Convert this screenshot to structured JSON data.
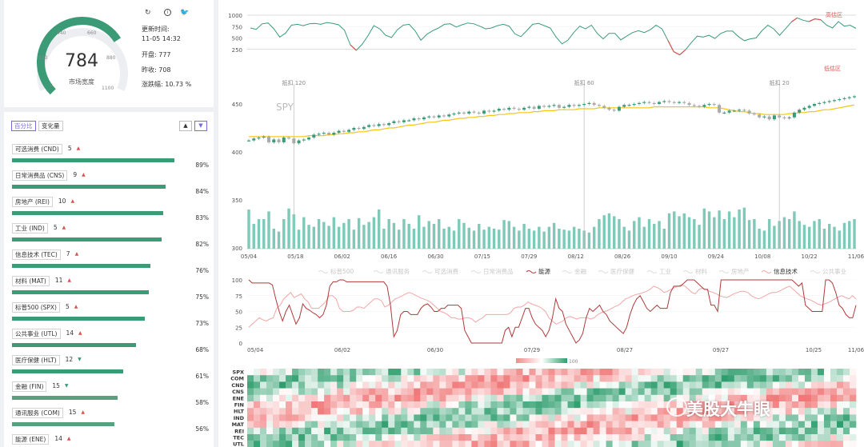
{
  "gauge": {
    "value": "784",
    "label": "市场宽度",
    "min": 0,
    "max": 1100,
    "ticks": [
      "0",
      "220",
      "440",
      "660",
      "880",
      "1100"
    ],
    "fraction": 0.713
  },
  "toolbar": {
    "refresh_icon": "refresh-icon",
    "info_icon": "info-icon",
    "share_icon": "twitter-icon"
  },
  "stats": {
    "update_label": "更新时间:",
    "update_time": "11-05 14:32",
    "open": "开盘: 777",
    "prev_close": "昨收: 708",
    "change": "涨跌幅: 10.73 %"
  },
  "sector_panel": {
    "tab_percent": "百分比",
    "tab_change": "变化量",
    "sort_up": "▲",
    "sort_down": "▼",
    "items": [
      {
        "name": "可选消费 (CND)",
        "count": "5",
        "trend": "up",
        "value": 89,
        "pct": "89%"
      },
      {
        "name": "日常消费品 (CNS)",
        "count": "9",
        "trend": "up",
        "value": 84,
        "pct": "84%"
      },
      {
        "name": "房地产 (REI)",
        "count": "10",
        "trend": "up",
        "value": 83,
        "pct": "83%"
      },
      {
        "name": "工业 (IND)",
        "count": "5",
        "trend": "up",
        "value": 82,
        "pct": "82%"
      },
      {
        "name": "信息技术 (TEC)",
        "count": "7",
        "trend": "up",
        "value": 76,
        "pct": "76%"
      },
      {
        "name": "材料 (MAT)",
        "count": "11",
        "trend": "up",
        "value": 75,
        "pct": "75%"
      },
      {
        "name": "标普500 (SPX)",
        "count": "5",
        "trend": "up",
        "value": 73,
        "pct": "73%"
      },
      {
        "name": "公共事业 (UTL)",
        "count": "14",
        "trend": "up",
        "value": 68,
        "pct": "68%"
      },
      {
        "name": "医疗保健 (HLT)",
        "count": "12",
        "trend": "down",
        "value": 61,
        "pct": "61%"
      },
      {
        "name": "金融 (FIN)",
        "count": "15",
        "trend": "down",
        "value": 58,
        "pct": "58%"
      },
      {
        "name": "通讯服务 (COM)",
        "count": "15",
        "trend": "up",
        "value": 56,
        "pct": "56%"
      },
      {
        "name": "能源 (ENE)",
        "count": "14",
        "trend": "up",
        "value": null,
        "pct": ""
      }
    ]
  },
  "colors": {
    "green": "#3b9b77",
    "light_green": "#7fc9b8",
    "red": "#d9534f",
    "yellow": "#f5c518",
    "accent": "#7b6bd8",
    "dark_red": "#b03a3a",
    "pink": "#f2a6a6"
  },
  "main_chart": {
    "breadth": {
      "y_ticks": [
        "1000",
        "750",
        "500",
        "250"
      ],
      "overbought_label": "高估区",
      "oversold_label": "低估区",
      "values": [
        720,
        690,
        810,
        830,
        700,
        520,
        610,
        780,
        800,
        770,
        810,
        820,
        800,
        840,
        820,
        790,
        670,
        350,
        230,
        360,
        550,
        770,
        700,
        560,
        510,
        680,
        780,
        800,
        660,
        450,
        580,
        660,
        720,
        800,
        810,
        740,
        790,
        830,
        810,
        760,
        700,
        720,
        770,
        800,
        760,
        590,
        530,
        660,
        800,
        820,
        770,
        720,
        520,
        370,
        450,
        620,
        760,
        700,
        780,
        600,
        480,
        600,
        600,
        460,
        540,
        620,
        660,
        620,
        680,
        780,
        700,
        450,
        200,
        130,
        240,
        400,
        540,
        520,
        560,
        490,
        600,
        650,
        650,
        530,
        440,
        480,
        500,
        660,
        780,
        700,
        560,
        700,
        850,
        940,
        890,
        860,
        920,
        900,
        780,
        720,
        860,
        760,
        780,
        710
      ]
    },
    "price": {
      "label": "SPY",
      "y_ticks": [
        "450",
        "400",
        "350",
        "300"
      ],
      "x_ticks": [
        "05/04",
        "05/18",
        "06/02",
        "06/16",
        "06/30",
        "07/15",
        "07/29",
        "08/12",
        "08/26",
        "09/10",
        "09/24",
        "10/08",
        "10/22",
        "11/06"
      ],
      "markers": [
        {
          "label": "抵扣 120",
          "index": 9
        },
        {
          "label": "抵扣 60",
          "index": 67
        },
        {
          "label": "抵扣 20",
          "index": 106
        }
      ],
      "closes": [
        412,
        414,
        415,
        416,
        410,
        413,
        410,
        415,
        414,
        409,
        412,
        413,
        415,
        418,
        419,
        420,
        418,
        420,
        422,
        421,
        423,
        425,
        424,
        426,
        428,
        427,
        429,
        428,
        430,
        432,
        431,
        433,
        433,
        435,
        434,
        436,
        437,
        436,
        438,
        437,
        439,
        440,
        441,
        440,
        442,
        441,
        440,
        443,
        442,
        443,
        445,
        444,
        446,
        445,
        444,
        446,
        447,
        445,
        448,
        447,
        448,
        449,
        446,
        447,
        449,
        448,
        449,
        450,
        451,
        449,
        448,
        446,
        444,
        443,
        447,
        449,
        449,
        450,
        451,
        452,
        451,
        450,
        452,
        453,
        452,
        451,
        452,
        451,
        449,
        448,
        447,
        449,
        450,
        449,
        441,
        441,
        443,
        443,
        444,
        443,
        440,
        439,
        436,
        437,
        434,
        438,
        436,
        435,
        436,
        441,
        444,
        446,
        448,
        450,
        451,
        452,
        453,
        454,
        455,
        456,
        457,
        458
      ],
      "ma": [
        416,
        416,
        416,
        416,
        416,
        416,
        416,
        416,
        416,
        416,
        416,
        416,
        417,
        417,
        417,
        417,
        418,
        418,
        419,
        419,
        420,
        420,
        421,
        421,
        422,
        423,
        423,
        424,
        425,
        425,
        426,
        427,
        428,
        428,
        429,
        430,
        431,
        431,
        432,
        433,
        433,
        434,
        435,
        435,
        436,
        436,
        437,
        437,
        438,
        438,
        439,
        439,
        440,
        440,
        441,
        441,
        441,
        442,
        442,
        443,
        443,
        443,
        444,
        444,
        444,
        444,
        445,
        445,
        445,
        445,
        446,
        446,
        446,
        446,
        446,
        446,
        446,
        446,
        446,
        446,
        446,
        447,
        447,
        447,
        447,
        447,
        447,
        447,
        447,
        447,
        447,
        447,
        446,
        446,
        446,
        445,
        444,
        443,
        442,
        442,
        441,
        440,
        440,
        439,
        439,
        439,
        439,
        439,
        440,
        440,
        441,
        441,
        442,
        442,
        443,
        444,
        444,
        445,
        446,
        447,
        448,
        449
      ],
      "volumes": [
        340,
        325,
        330,
        330,
        338,
        320,
        317,
        330,
        341,
        335,
        319,
        332,
        324,
        322,
        330,
        327,
        323,
        332,
        322,
        326,
        330,
        319,
        331,
        324,
        327,
        332,
        340,
        320,
        330,
        326,
        319,
        330,
        325,
        320,
        334,
        322,
        328,
        325,
        330,
        320,
        322,
        318,
        330,
        326,
        321,
        318,
        325,
        319,
        322,
        320,
        319,
        329,
        328,
        322,
        318,
        325,
        320,
        318,
        322,
        317,
        322,
        326,
        320,
        319,
        318,
        322,
        320,
        318,
        316,
        322,
        330,
        334,
        336,
        333,
        330,
        322,
        318,
        328,
        332,
        322,
        330,
        325,
        328,
        320,
        336,
        338,
        333,
        336,
        332,
        330,
        324,
        341,
        338,
        332,
        339,
        330,
        338,
        332,
        340,
        342,
        329,
        330,
        320,
        318,
        330,
        323,
        328,
        332,
        330,
        338,
        328,
        324,
        322,
        328,
        330,
        320,
        325,
        322,
        318,
        326,
        328,
        330
      ]
    },
    "legend": [
      "标普500",
      "通讯服务",
      "可选消费",
      "日常消费品",
      "能源",
      "金融",
      "医疗保健",
      "工业",
      "材料",
      "房地产",
      "信息技术",
      "公共事业"
    ],
    "legend_active": [
      "能源",
      "信息技术"
    ],
    "sector_lines": {
      "y_ticks": [
        "100",
        "75",
        "50",
        "25",
        "0"
      ],
      "x_ticks": [
        "05/04",
        "06/02",
        "06/30",
        "07/29",
        "08/27",
        "09/27",
        "10/25",
        "11/06"
      ],
      "energy": [
        100,
        95,
        95,
        95,
        95,
        95,
        95,
        92,
        70,
        50,
        35,
        50,
        60,
        45,
        30,
        40,
        62,
        55,
        52,
        48,
        45,
        40,
        45,
        60,
        90,
        97,
        97,
        100,
        100,
        97,
        97,
        97,
        97,
        97,
        97,
        97,
        97,
        97,
        97,
        97,
        97,
        90,
        60,
        10,
        20,
        45,
        50,
        50,
        45,
        45,
        45,
        55,
        60,
        62,
        57,
        50,
        50,
        55,
        55,
        60,
        60,
        60,
        60,
        55,
        20,
        10,
        0,
        0,
        0,
        0,
        0,
        0,
        0,
        0,
        0,
        0,
        20,
        25,
        10,
        25,
        25,
        40,
        55,
        55,
        40,
        30,
        25,
        20,
        10,
        20,
        40,
        70,
        55,
        50,
        30,
        20,
        10,
        0,
        5,
        15,
        40,
        55,
        50,
        55,
        60,
        50,
        45,
        35,
        30,
        25,
        20,
        15,
        25,
        45,
        60,
        70,
        75,
        65,
        55,
        50,
        55,
        60,
        55,
        55,
        55,
        80,
        90,
        90,
        90,
        95,
        100,
        100,
        100,
        95,
        90,
        85,
        85,
        60,
        60,
        50,
        100,
        100,
        100,
        100,
        100,
        100,
        100,
        100,
        100,
        100,
        100,
        100,
        100,
        100,
        100,
        100,
        100,
        100,
        100,
        100,
        100,
        100,
        95,
        90,
        95,
        60,
        55,
        50,
        50,
        50,
        50,
        100,
        100,
        95,
        80,
        60,
        55,
        45,
        40,
        40,
        60
      ],
      "tech": [
        25,
        30,
        35,
        40,
        37,
        35,
        38,
        40,
        55,
        60,
        70,
        75,
        80,
        72,
        75,
        78,
        70,
        65,
        55,
        55,
        55,
        60,
        65,
        75,
        75,
        70,
        55,
        50,
        50,
        50,
        52,
        57,
        57,
        55,
        60,
        65,
        70,
        70,
        67,
        57,
        60,
        65,
        70,
        72,
        75,
        78,
        80,
        78,
        75,
        72,
        70,
        68,
        65,
        60,
        55,
        50,
        48,
        45,
        40,
        40,
        38,
        38,
        40,
        40,
        38,
        33,
        37,
        40,
        45,
        45,
        45,
        45,
        45,
        45,
        45,
        48,
        55,
        57,
        57,
        60,
        65,
        62,
        60,
        58,
        55,
        50,
        40,
        35,
        30,
        32,
        35,
        40,
        42,
        40,
        38,
        40,
        40,
        40,
        38,
        40,
        45,
        48,
        50,
        52,
        55,
        58,
        60,
        65,
        70,
        72,
        75,
        77,
        78,
        80,
        82,
        85,
        90,
        88,
        85,
        80,
        82,
        85,
        88,
        90,
        92,
        90,
        85,
        80,
        78,
        85,
        87,
        85,
        82,
        80,
        78,
        75,
        73,
        72,
        75,
        78,
        80,
        82,
        82,
        80,
        75,
        72,
        70,
        72,
        75,
        78,
        80,
        80,
        82,
        85,
        88,
        90,
        85,
        80,
        75,
        72,
        70,
        68,
        65,
        62,
        60,
        62,
        64,
        67,
        70,
        73,
        75,
        72,
        70,
        75,
        70
      ]
    },
    "heatmap": {
      "scale_min": "",
      "scale_max": "100",
      "rows": [
        "SPX",
        "COM",
        "CND",
        "CNS",
        "ENE",
        "FIN",
        "HLT",
        "IND",
        "MAT",
        "REI",
        "TEC",
        "UTL"
      ]
    }
  },
  "watermark": {
    "text": "美股大牛眼"
  }
}
